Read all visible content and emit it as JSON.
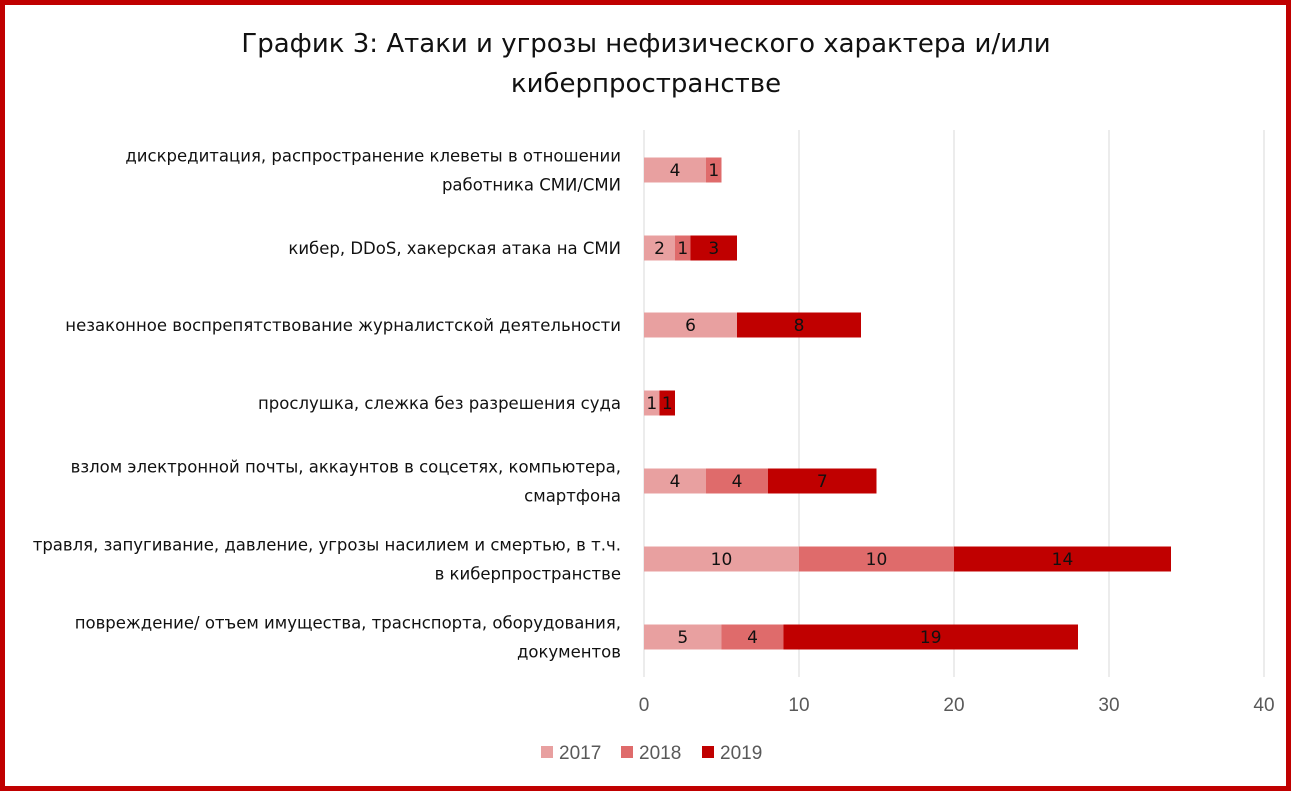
{
  "chart_data": {
    "type": "bar",
    "orientation": "horizontal",
    "stacked": true,
    "title_lines": [
      "График 3: Атаки и угрозы нефизического характера и/или",
      "киберпространстве"
    ],
    "categories": [
      [
        "дискредитация, распространение клеветы в отношении",
        "работника СМИ/СМИ"
      ],
      [
        "кибер, DDoS, хакерская атака на СМИ"
      ],
      [
        "незаконное воспрепятствование журналистской деятельности"
      ],
      [
        "прослушка, слежка без разрешения суда"
      ],
      [
        "взлом электронной почты, аккаунтов в соцсетях, компьютера,",
        "смартфона"
      ],
      [
        "травля, запугивание, давление, угрозы насилием и смертью, в т.ч.",
        "в киберпространстве"
      ],
      [
        "повреждение/ отъем имущества, трасн­спорта, оборудования,",
        "документов"
      ]
    ],
    "series": [
      {
        "name": "2017",
        "color": "#e8a0a0",
        "values": [
          4,
          2,
          6,
          1,
          4,
          10,
          5
        ]
      },
      {
        "name": "2018",
        "color": "#df6b6b",
        "values": [
          1,
          1,
          0,
          0,
          4,
          10,
          4
        ]
      },
      {
        "name": "2019",
        "color": "#c00000",
        "values": [
          0,
          3,
          8,
          1,
          7,
          14,
          19
        ]
      }
    ],
    "xlim": [
      0,
      40
    ],
    "xticks": [
      0,
      10,
      20,
      30,
      40
    ],
    "grid": true,
    "legend_position": "bottom",
    "frame_color": "#c00000"
  }
}
